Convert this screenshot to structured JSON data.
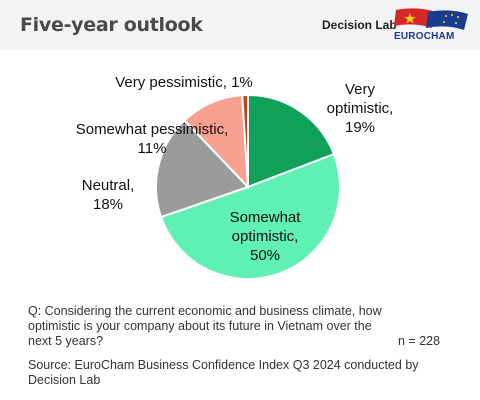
{
  "header": {
    "title": "Five-year outlook",
    "brand_decision_lab": "Decision Lab",
    "brand_eurocham": "EUROCHAM"
  },
  "chart_data": {
    "type": "pie",
    "title": "Five-year outlook",
    "slices": [
      {
        "label": "Very optimistic",
        "value": 19,
        "color": "#0fa15a",
        "label_lines": [
          "Very",
          "optimistic,",
          "19%"
        ]
      },
      {
        "label": "Somewhat optimistic",
        "value": 50,
        "color": "#5ef0b4",
        "label_lines": [
          "Somewhat",
          "optimistic,",
          "50%"
        ]
      },
      {
        "label": "Neutral",
        "value": 18,
        "color": "#9b9b9b",
        "label_lines": [
          "Neutral,",
          "18%"
        ]
      },
      {
        "label": "Somewhat pessimistic",
        "value": 11,
        "color": "#f7a08f",
        "label_lines": [
          "Somewhat pessimistic,",
          "11%"
        ]
      },
      {
        "label": "Very pessimistic",
        "value": 1,
        "color": "#c8401f",
        "label_lines": [
          "Very pessimistic, 1%"
        ]
      }
    ]
  },
  "footer": {
    "question": "Q: Considering the current economic and business climate, how optimistic is your company about its future in Vietnam over the next 5 years?",
    "sample_size": "n = 228",
    "source": "Source: EuroCham Business Confidence Index Q3 2024 conducted by Decision Lab"
  },
  "colors": {
    "header_bg": "#f3f3f3",
    "eurocham_blue": "#1a3c8f",
    "flag_red": "#d62828",
    "flag_yellow": "#ffd60a"
  }
}
